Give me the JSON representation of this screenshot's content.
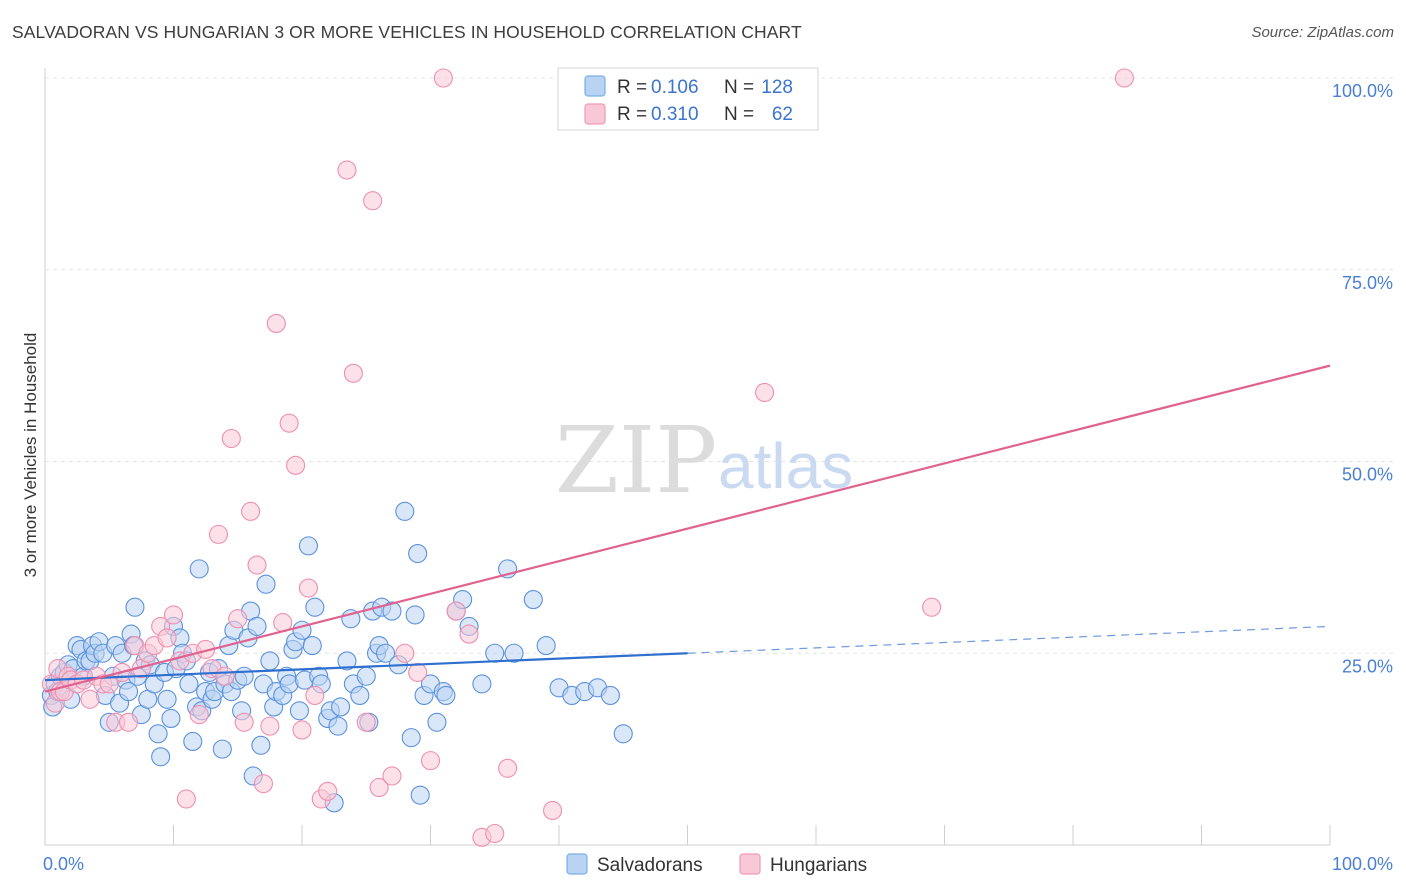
{
  "title": "SALVADORAN VS HUNGARIAN 3 OR MORE VEHICLES IN HOUSEHOLD CORRELATION CHART",
  "source": "Source: ZipAtlas.com",
  "watermark": {
    "zip": "ZIP",
    "atlas": "atlas"
  },
  "legend": {
    "rows": [
      {
        "r_label": "R =",
        "r_value": "0.106",
        "n_label": "N =",
        "n_value": "128",
        "color": "#7aaee8",
        "fill": "#b9d3f3"
      },
      {
        "r_label": "R =",
        "r_value": "0.310",
        "n_label": "N =",
        "n_value": "62",
        "color": "#f09ab5",
        "fill": "#f9c8d7"
      }
    ]
  },
  "bottom_legend": [
    "Salvadorans",
    "Hungarians"
  ],
  "chart_data": {
    "type": "scatter",
    "title": "SALVADORAN VS HUNGARIAN 3 OR MORE VEHICLES IN HOUSEHOLD CORRELATION CHART",
    "xlabel": "",
    "ylabel": "3 or more Vehicles in Household",
    "xlim": [
      0,
      100
    ],
    "ylim": [
      0,
      100
    ],
    "x_tick_labels": [
      "0.0%",
      "100.0%"
    ],
    "y_ticks": [
      25,
      50,
      75,
      100
    ],
    "y_tick_labels": [
      "25.0%",
      "50.0%",
      "75.0%",
      "100.0%"
    ],
    "grid": true,
    "legend_placement": "top-center",
    "series": [
      {
        "name": "Salvadorans",
        "color": "#5b92dc",
        "fill": "#b9d3f3",
        "trend": {
          "x0": 0,
          "y0": 21.5,
          "x1": 50,
          "y1": 25,
          "dash_x1": 100,
          "dash_y1": 28.5,
          "color": "#2e6fcf"
        },
        "points": [
          [
            0.5,
            19.5
          ],
          [
            0.6,
            18
          ],
          [
            0.8,
            21
          ],
          [
            1,
            20
          ],
          [
            1.2,
            22
          ],
          [
            1.5,
            22.5
          ],
          [
            1.8,
            23.5
          ],
          [
            2,
            19
          ],
          [
            2.2,
            23
          ],
          [
            2.5,
            26
          ],
          [
            2.8,
            25.5
          ],
          [
            3,
            22
          ],
          [
            3.2,
            24
          ],
          [
            3.5,
            24
          ],
          [
            3.7,
            26
          ],
          [
            3.9,
            25
          ],
          [
            4.2,
            26.5
          ],
          [
            4.5,
            25
          ],
          [
            4.7,
            19.5
          ],
          [
            5,
            16
          ],
          [
            5.3,
            22
          ],
          [
            5.5,
            26
          ],
          [
            5.8,
            18.5
          ],
          [
            6,
            25
          ],
          [
            6.3,
            21.5
          ],
          [
            6.5,
            20
          ],
          [
            6.7,
            27.5
          ],
          [
            6.9,
            26
          ],
          [
            7,
            31
          ],
          [
            7.2,
            22
          ],
          [
            7.5,
            17
          ],
          [
            7.8,
            24
          ],
          [
            8,
            19
          ],
          [
            8.2,
            23.5
          ],
          [
            8.5,
            21
          ],
          [
            8.8,
            14.5
          ],
          [
            9,
            11.5
          ],
          [
            9.3,
            22.5
          ],
          [
            9.5,
            19
          ],
          [
            9.8,
            16.5
          ],
          [
            10,
            28.5
          ],
          [
            10.2,
            23
          ],
          [
            10.5,
            27
          ],
          [
            10.7,
            25
          ],
          [
            11,
            24
          ],
          [
            11.2,
            21
          ],
          [
            11.5,
            13.5
          ],
          [
            11.8,
            18
          ],
          [
            12,
            36
          ],
          [
            12.2,
            17.5
          ],
          [
            12.5,
            20
          ],
          [
            12.8,
            22.5
          ],
          [
            13,
            19
          ],
          [
            13.2,
            20
          ],
          [
            13.5,
            23
          ],
          [
            13.8,
            12.5
          ],
          [
            14,
            21
          ],
          [
            14.3,
            26
          ],
          [
            14.5,
            20
          ],
          [
            14.7,
            28
          ],
          [
            15,
            21.5
          ],
          [
            15.3,
            17.5
          ],
          [
            15.5,
            22
          ],
          [
            15.8,
            27
          ],
          [
            16,
            30.5
          ],
          [
            16.2,
            9
          ],
          [
            16.5,
            28.5
          ],
          [
            16.8,
            13
          ],
          [
            17,
            21
          ],
          [
            17.2,
            34
          ],
          [
            17.5,
            24
          ],
          [
            17.8,
            18
          ],
          [
            18,
            20
          ],
          [
            18.5,
            19.5
          ],
          [
            18.8,
            22
          ],
          [
            19,
            21
          ],
          [
            19.3,
            25.5
          ],
          [
            19.5,
            26.5
          ],
          [
            19.8,
            17.5
          ],
          [
            20,
            28
          ],
          [
            20.2,
            21.5
          ],
          [
            20.5,
            39
          ],
          [
            20.8,
            26
          ],
          [
            21,
            31
          ],
          [
            21.3,
            22
          ],
          [
            21.5,
            21
          ],
          [
            22,
            16.5
          ],
          [
            22.2,
            17.5
          ],
          [
            22.5,
            5.5
          ],
          [
            22.8,
            15.5
          ],
          [
            23,
            18
          ],
          [
            23.5,
            24
          ],
          [
            23.8,
            29.5
          ],
          [
            24,
            21
          ],
          [
            24.5,
            19.5
          ],
          [
            25,
            22
          ],
          [
            25.2,
            16
          ],
          [
            25.5,
            30.5
          ],
          [
            25.8,
            25
          ],
          [
            26,
            26
          ],
          [
            26.2,
            31
          ],
          [
            26.5,
            25
          ],
          [
            27,
            30.5
          ],
          [
            27.5,
            23.5
          ],
          [
            28,
            43.5
          ],
          [
            28.5,
            14
          ],
          [
            28.8,
            30
          ],
          [
            29,
            38
          ],
          [
            29.2,
            6.5
          ],
          [
            29.5,
            19.5
          ],
          [
            30,
            21
          ],
          [
            30.5,
            16
          ],
          [
            31,
            20
          ],
          [
            31.2,
            19.5
          ],
          [
            32,
            30.5
          ],
          [
            32.5,
            32
          ],
          [
            33,
            28.5
          ],
          [
            34,
            21
          ],
          [
            35,
            25
          ],
          [
            36,
            36
          ],
          [
            36.5,
            25
          ],
          [
            38,
            32
          ],
          [
            39,
            26
          ],
          [
            40,
            20.5
          ],
          [
            41,
            19.5
          ],
          [
            42,
            20
          ],
          [
            43,
            20.5
          ],
          [
            44,
            19.5
          ],
          [
            45,
            14.5
          ]
        ]
      },
      {
        "name": "Hungarians",
        "color": "#ee8fb0",
        "fill": "#f9c8d7",
        "trend": {
          "x0": 0,
          "y0": 20,
          "x1": 100,
          "y1": 62.5,
          "color": "#e0628f"
        },
        "points": [
          [
            0.5,
            21
          ],
          [
            0.8,
            18.5
          ],
          [
            1,
            23
          ],
          [
            1.2,
            20
          ],
          [
            1.5,
            20
          ],
          [
            1.8,
            22
          ],
          [
            2,
            21.5
          ],
          [
            2.5,
            21
          ],
          [
            3,
            21.5
          ],
          [
            3.5,
            19
          ],
          [
            4,
            22
          ],
          [
            4.5,
            21
          ],
          [
            5,
            21
          ],
          [
            5.5,
            16
          ],
          [
            6,
            22.5
          ],
          [
            6.5,
            16
          ],
          [
            7,
            26
          ],
          [
            7.5,
            23
          ],
          [
            8,
            25
          ],
          [
            8.5,
            26
          ],
          [
            9,
            28.5
          ],
          [
            9.5,
            27
          ],
          [
            10,
            30
          ],
          [
            10.5,
            24
          ],
          [
            11,
            6
          ],
          [
            11.5,
            25
          ],
          [
            12,
            17
          ],
          [
            12.5,
            25.5
          ],
          [
            13,
            23
          ],
          [
            13.5,
            40.5
          ],
          [
            14,
            22
          ],
          [
            14.5,
            53
          ],
          [
            15,
            29.5
          ],
          [
            15.5,
            16
          ],
          [
            16,
            43.5
          ],
          [
            16.5,
            36.5
          ],
          [
            17,
            8
          ],
          [
            17.5,
            15.5
          ],
          [
            18,
            68
          ],
          [
            18.5,
            29
          ],
          [
            19,
            55
          ],
          [
            19.5,
            49.5
          ],
          [
            20,
            15
          ],
          [
            20.5,
            33.5
          ],
          [
            21,
            19.5
          ],
          [
            21.5,
            6
          ],
          [
            22,
            7
          ],
          [
            23.5,
            88
          ],
          [
            24,
            61.5
          ],
          [
            25,
            16
          ],
          [
            25.5,
            84
          ],
          [
            26,
            7.5
          ],
          [
            27,
            9
          ],
          [
            28,
            25
          ],
          [
            29,
            22.5
          ],
          [
            30,
            11
          ],
          [
            31,
            100
          ],
          [
            32,
            30.5
          ],
          [
            33,
            27.5
          ],
          [
            34,
            1
          ],
          [
            35,
            1.5
          ],
          [
            36,
            10
          ],
          [
            39.5,
            4.5
          ],
          [
            56,
            59
          ],
          [
            69,
            31
          ],
          [
            84,
            100
          ]
        ]
      }
    ]
  }
}
